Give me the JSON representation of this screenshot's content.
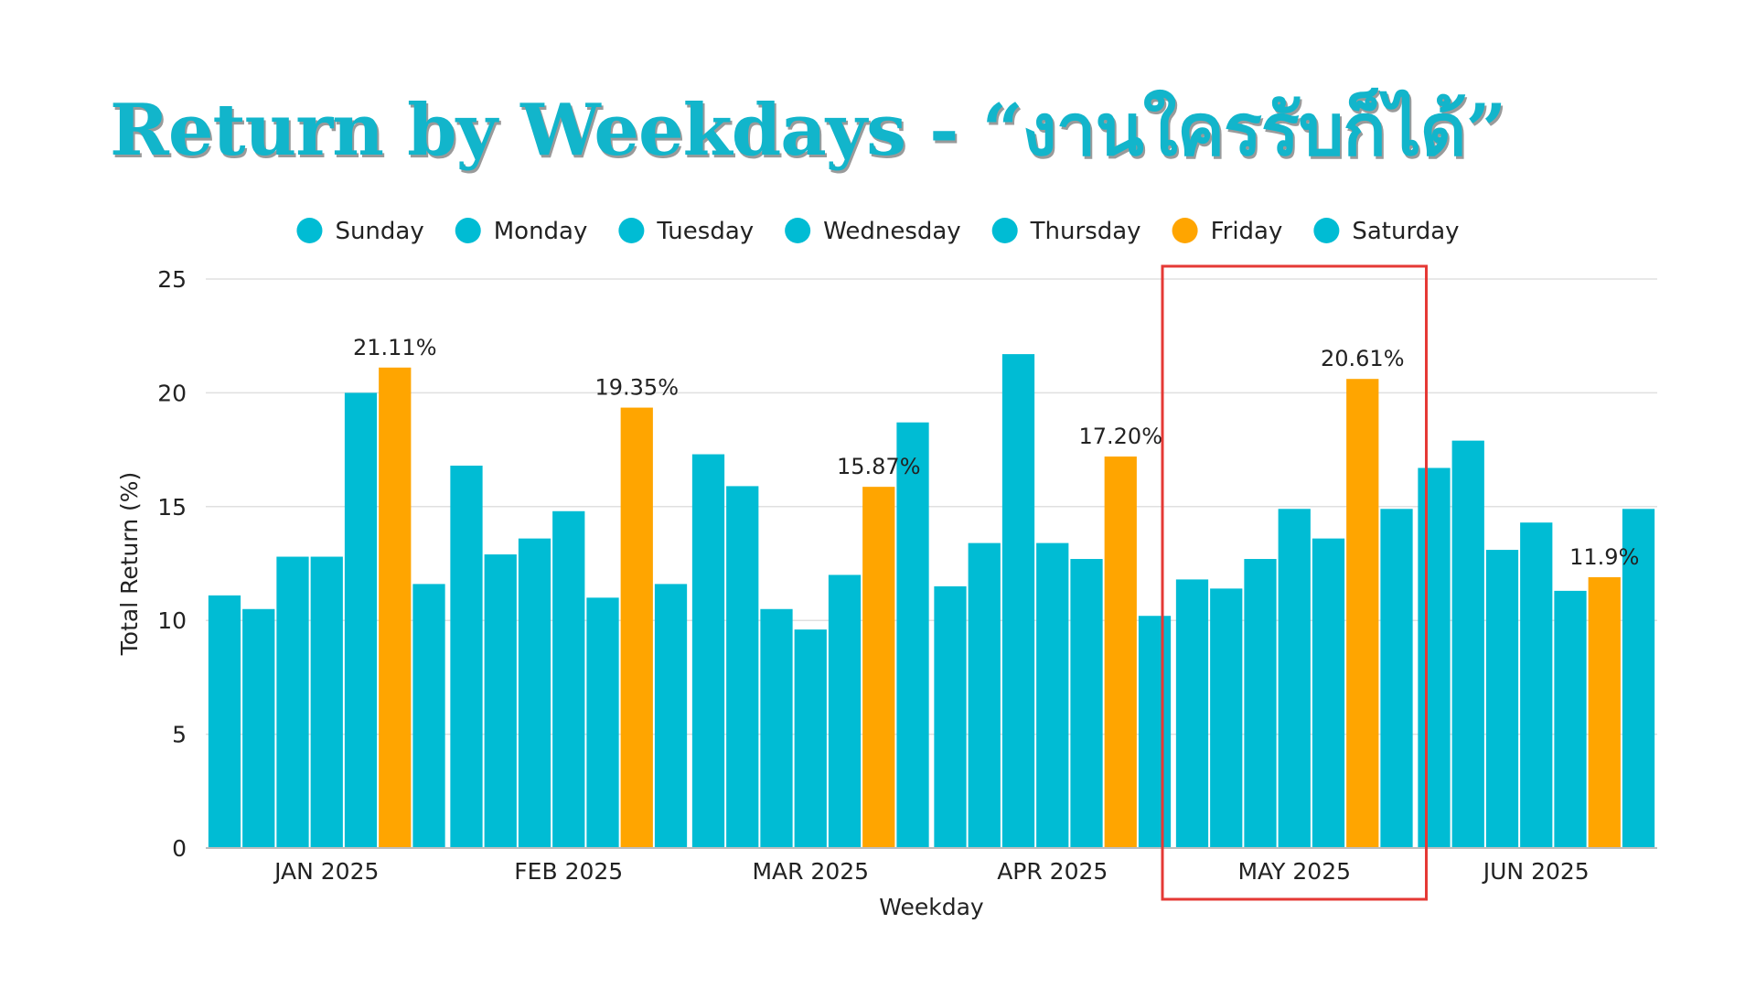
{
  "chart_data": {
    "type": "bar",
    "title": "Return by Weekdays - “งานใครรับก็ได้”",
    "xlabel": "Weekday",
    "ylabel": "Total Return (%)",
    "ylim": [
      0,
      25
    ],
    "yticks": [
      0,
      5,
      10,
      15,
      20,
      25
    ],
    "grid": true,
    "legend": "top",
    "categories": [
      "JAN 2025",
      "FEB 2025",
      "MAR 2025",
      "APR 2025",
      "MAY 2025",
      "JUN 2025"
    ],
    "highlight_category": "MAY 2025",
    "colors": {
      "default": "#00bcd4",
      "highlight": "#ffa500",
      "box": "#e53935",
      "grid": "#e0e0e0"
    },
    "series": [
      {
        "name": "Sunday",
        "color": "#00bcd4",
        "values": [
          11.1,
          16.8,
          17.3,
          11.5,
          11.8,
          16.7
        ]
      },
      {
        "name": "Monday",
        "color": "#00bcd4",
        "values": [
          10.5,
          12.9,
          15.9,
          13.4,
          11.4,
          17.9
        ]
      },
      {
        "name": "Tuesday",
        "color": "#00bcd4",
        "values": [
          12.8,
          13.6,
          10.5,
          21.7,
          12.7,
          13.1
        ]
      },
      {
        "name": "Wednesday",
        "color": "#00bcd4",
        "values": [
          12.8,
          14.8,
          9.6,
          13.4,
          14.9,
          14.3
        ]
      },
      {
        "name": "Thursday",
        "color": "#00bcd4",
        "values": [
          20.0,
          11.0,
          12.0,
          12.7,
          13.6,
          11.3
        ]
      },
      {
        "name": "Friday",
        "color": "#ffa500",
        "values": [
          21.11,
          19.35,
          15.87,
          17.2,
          20.61,
          11.9
        ]
      },
      {
        "name": "Saturday",
        "color": "#00bcd4",
        "values": [
          11.6,
          11.6,
          18.7,
          10.2,
          14.9,
          14.9
        ]
      }
    ],
    "data_labels": [
      "21.11%",
      "19.35%",
      "15.87%",
      "17.20%",
      "20.61%",
      "11.9%"
    ]
  }
}
